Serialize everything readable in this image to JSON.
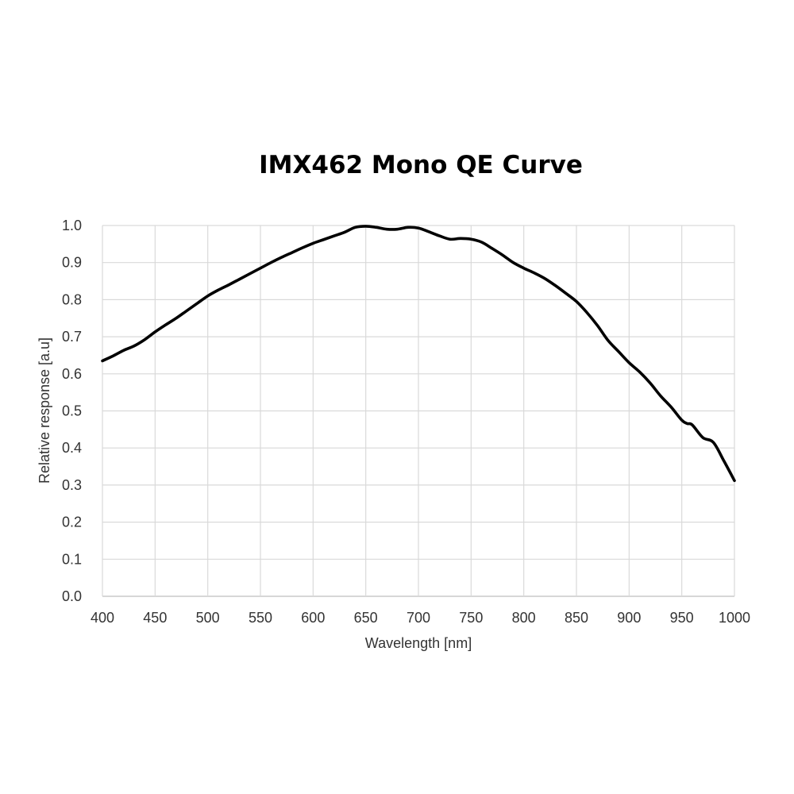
{
  "chart_data": {
    "type": "line",
    "title": "IMX462 Mono QE Curve",
    "xlabel": "Wavelength [nm]",
    "ylabel": "Relative response [a.u]",
    "xlim": [
      400,
      1000
    ],
    "ylim": [
      0,
      1.0
    ],
    "x_ticks": [
      "400",
      "450",
      "500",
      "550",
      "600",
      "650",
      "700",
      "750",
      "800",
      "850",
      "900",
      "950",
      "1000"
    ],
    "y_ticks": [
      "0.0",
      "0.1",
      "0.2",
      "0.3",
      "0.4",
      "0.5",
      "0.6",
      "0.7",
      "0.8",
      "0.9",
      "1.0"
    ],
    "grid": true,
    "legend": "none",
    "line_color": "#000000",
    "grid_color": "#d9d9d9",
    "series": [
      {
        "x": [
          400,
          410,
          420,
          430,
          440,
          450,
          460,
          470,
          480,
          490,
          500,
          510,
          520,
          530,
          540,
          550,
          560,
          570,
          580,
          590,
          600,
          610,
          620,
          630,
          640,
          650,
          660,
          670,
          680,
          690,
          700,
          710,
          720,
          730,
          740,
          750,
          760,
          770,
          780,
          790,
          800,
          810,
          820,
          830,
          840,
          850,
          860,
          870,
          880,
          890,
          900,
          910,
          920,
          930,
          940,
          950,
          955,
          960,
          970,
          980,
          990,
          1000
        ],
        "y": [
          0.635,
          0.648,
          0.663,
          0.675,
          0.692,
          0.713,
          0.732,
          0.75,
          0.77,
          0.79,
          0.81,
          0.826,
          0.84,
          0.855,
          0.87,
          0.885,
          0.9,
          0.914,
          0.927,
          0.94,
          0.952,
          0.962,
          0.972,
          0.982,
          0.995,
          0.998,
          0.995,
          0.99,
          0.99,
          0.995,
          0.993,
          0.983,
          0.972,
          0.963,
          0.965,
          0.963,
          0.955,
          0.938,
          0.92,
          0.9,
          0.885,
          0.872,
          0.857,
          0.838,
          0.817,
          0.795,
          0.765,
          0.73,
          0.69,
          0.66,
          0.63,
          0.605,
          0.575,
          0.54,
          0.51,
          0.475,
          0.466,
          0.462,
          0.428,
          0.415,
          0.365,
          0.312
        ]
      }
    ]
  }
}
